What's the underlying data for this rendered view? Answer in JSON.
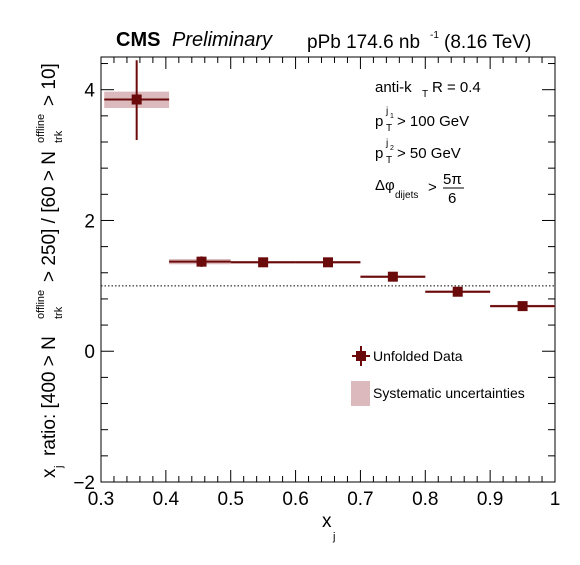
{
  "header": {
    "experiment": "CMS",
    "status": "Preliminary",
    "lumi_prefix": "pPb 174.6 nb",
    "lumi_exp": "-1",
    "energy": "(8.16 TeV)"
  },
  "annotations": {
    "algo_main": "anti-k",
    "algo_sub": "T",
    "algo_rest": "R = 0.4",
    "pt1_p": "p",
    "pt1_sup": "j",
    "pt1_supsub": "1",
    "pt1_sub": "T",
    "pt1_rest": "> 100 GeV",
    "pt2_p": "p",
    "pt2_sup": "j",
    "pt2_supsub": "2",
    "pt2_sub": "T",
    "pt2_rest": "> 50 GeV",
    "dphi_main": "Δφ",
    "dphi_sub": "dijets",
    "dphi_gt": ">",
    "dphi_num": "5π",
    "dphi_den": "6"
  },
  "axis_labels": {
    "x_main": "x",
    "x_sub": "j",
    "y_a": "x",
    "y_a_sub": "j",
    "y_b": "ratio: [400 > N",
    "y_b_sup": "offline",
    "y_b_sub": "trk",
    "y_c": "> 250] / [60 > N",
    "y_c_sup": "offline",
    "y_c_sub": "trk",
    "y_d": "> 10]"
  },
  "chart_data": {
    "type": "scatter",
    "xlim": [
      0.3,
      1.0
    ],
    "ylim": [
      -2,
      4.5
    ],
    "x_ticks": [
      "0.3",
      "0.4",
      "0.5",
      "0.6",
      "0.7",
      "0.8",
      "0.9",
      "1"
    ],
    "y_ticks": [
      "−2",
      "0",
      "2",
      "4"
    ],
    "reference_line": 1.0,
    "series": [
      {
        "name": "Unfolded Data",
        "color": "#6b0a0a",
        "points": [
          {
            "x": 0.355,
            "xlo": 0.305,
            "xhi": 0.405,
            "y": 3.85,
            "ylo": 3.23,
            "yhi": 4.45,
            "syst_lo": 3.72,
            "syst_hi": 3.97
          },
          {
            "x": 0.455,
            "xlo": 0.405,
            "xhi": 0.5,
            "y": 1.37,
            "ylo": 1.29,
            "yhi": 1.45,
            "syst_lo": 1.33,
            "syst_hi": 1.41
          },
          {
            "x": 0.55,
            "xlo": 0.5,
            "xhi": 0.6,
            "y": 1.36,
            "ylo": 1.33,
            "yhi": 1.39,
            "syst_lo": 1.34,
            "syst_hi": 1.38
          },
          {
            "x": 0.65,
            "xlo": 0.6,
            "xhi": 0.7,
            "y": 1.36,
            "ylo": 1.33,
            "yhi": 1.39,
            "syst_lo": 1.34,
            "syst_hi": 1.38
          },
          {
            "x": 0.75,
            "xlo": 0.7,
            "xhi": 0.8,
            "y": 1.14,
            "ylo": 1.1,
            "yhi": 1.18,
            "syst_lo": 1.12,
            "syst_hi": 1.16
          },
          {
            "x": 0.85,
            "xlo": 0.8,
            "xhi": 0.9,
            "y": 0.91,
            "ylo": 0.87,
            "yhi": 0.95,
            "syst_lo": 0.89,
            "syst_hi": 0.93
          },
          {
            "x": 0.95,
            "xlo": 0.9,
            "xhi": 1.0,
            "y": 0.69,
            "ylo": 0.65,
            "yhi": 0.73,
            "syst_lo": 0.67,
            "syst_hi": 0.71
          }
        ]
      }
    ],
    "legend": {
      "position": "center-right",
      "entries": [
        "Unfolded Data",
        "Systematic uncertainties"
      ],
      "syst_color": "#dbb9bc"
    }
  }
}
